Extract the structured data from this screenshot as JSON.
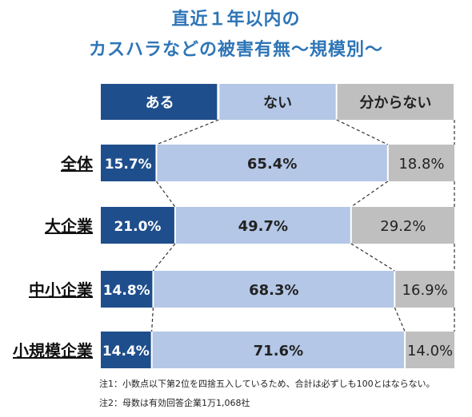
{
  "title": {
    "line1": "直近１年以内の",
    "line2": "カスハラなどの被害有無〜規模別〜"
  },
  "colors": {
    "aru": "#1f4e8c",
    "nai": "#b4c7e7",
    "wakaranai": "#bfbfbf",
    "title": "#2e75b6",
    "connector": "#333333"
  },
  "chart_data": {
    "type": "bar",
    "orientation": "horizontal",
    "stacked": true,
    "legend_position": "top",
    "categories": [
      "全体",
      "大企業",
      "中小企業",
      "小規模企業"
    ],
    "series": [
      {
        "name": "ある",
        "values": [
          15.7,
          21.0,
          14.8,
          14.4
        ],
        "labels": [
          "15.7%",
          "21.0%",
          "14.8%",
          "14.4%"
        ]
      },
      {
        "name": "ない",
        "values": [
          65.4,
          49.7,
          68.3,
          71.6
        ],
        "labels": [
          "65.4%",
          "49.7%",
          "68.3%",
          "71.6%"
        ]
      },
      {
        "name": "分からない",
        "values": [
          18.8,
          29.2,
          16.9,
          14.0
        ],
        "labels": [
          "18.8%",
          "29.2%",
          "16.9%",
          "14.0%"
        ]
      }
    ],
    "xlim": [
      0,
      100
    ]
  },
  "notes": {
    "note1": "注1：小数点以下第2位を四捨五入しているため、合計は必ずしも100とはならない。",
    "note2": "注2：母数は有効回答企業1万1,068社"
  }
}
